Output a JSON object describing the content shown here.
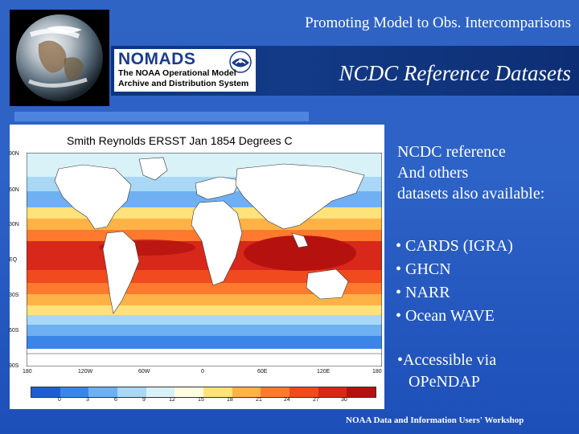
{
  "header": {
    "title": "Promoting Model to Obs. Intercomparisons"
  },
  "logo": {
    "name": "NOMADS",
    "line1": "The NOAA Operational Model",
    "line2": "Archive and Distribution System"
  },
  "banner": {
    "title": "NCDC Reference Datasets"
  },
  "map": {
    "header": "Smith Reynolds ERSST Jan 1854 Degrees C",
    "lat_labels": [
      "90N",
      "60N",
      "30N",
      "EQ",
      "30S",
      "60S",
      "90S"
    ],
    "lon_labels": [
      "180",
      "120W",
      "60W",
      "0",
      "60E",
      "120E",
      "180"
    ],
    "colorbar_labels": [
      "0",
      "3",
      "6",
      "9",
      "12",
      "15",
      "18",
      "21",
      "24",
      "27",
      "30"
    ],
    "colorbar_colors": [
      "#1e5fd0",
      "#3a86e8",
      "#6fb0f2",
      "#a8d8f5",
      "#d8f2f8",
      "#fffde0",
      "#ffe27a",
      "#ffb347",
      "#ff7a2e",
      "#f04a1e",
      "#d8281a",
      "#b5120f"
    ]
  },
  "content": {
    "intro_lines": [
      "NCDC reference",
      "And others",
      "datasets also available:"
    ],
    "bullets": [
      "• CARDS (IGRA)",
      "• GHCN",
      "• NARR",
      "• Ocean WAVE"
    ],
    "accessible_line1": "•Accessible via",
    "accessible_line2": "OPeNDAP"
  },
  "footer": {
    "text": "NOAA Data and Information Users' Workshop"
  }
}
